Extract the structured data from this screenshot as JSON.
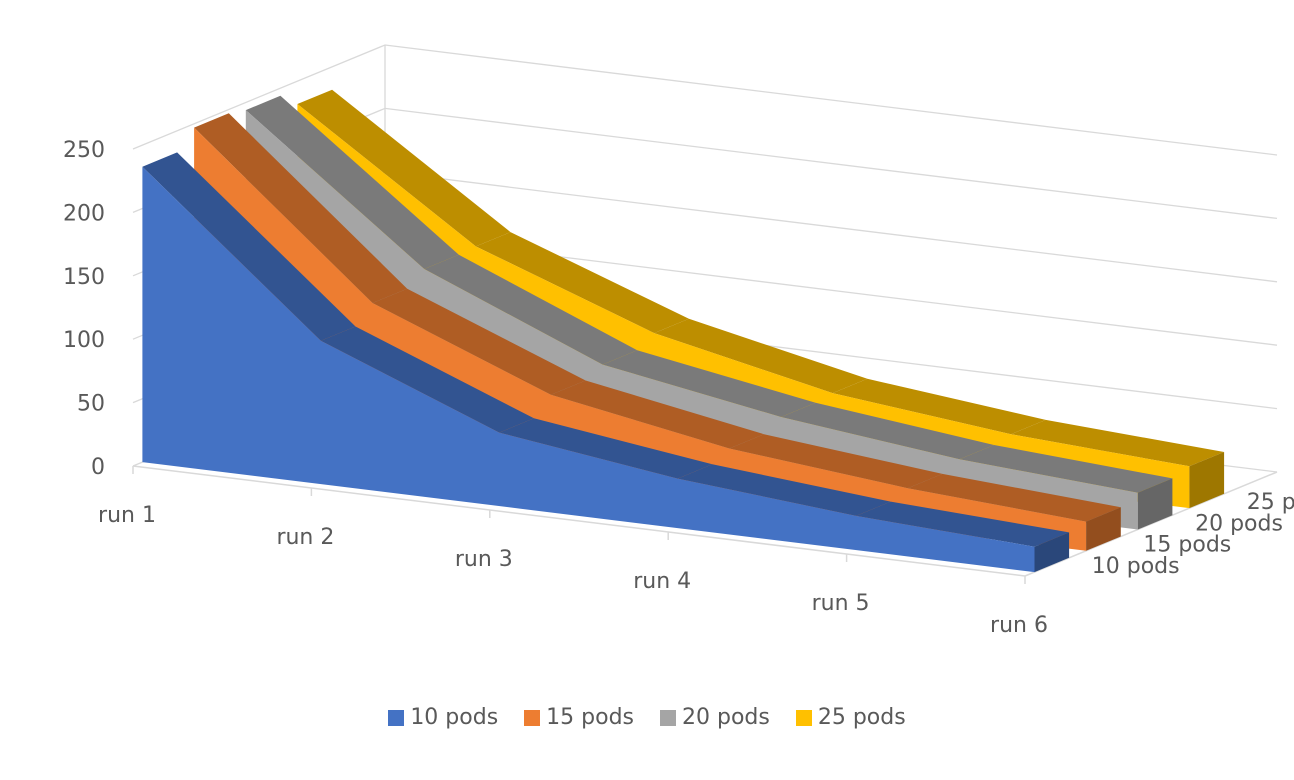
{
  "chart_data": {
    "type": "area",
    "subtype": "3d-area",
    "title": "",
    "xlabel": "",
    "ylabel": "",
    "categories": [
      "run 1",
      "run 2",
      "run 3",
      "run 4",
      "run 5",
      "run 6"
    ],
    "ylim": [
      0,
      250
    ],
    "yticks": [
      0,
      50,
      100,
      150,
      200,
      250
    ],
    "grid": true,
    "legend_position": "bottom",
    "series": [
      {
        "name": "10 pods",
        "color": "#4472C4",
        "values": [
          233,
          113,
          58,
          39,
          27,
          20
        ]
      },
      {
        "name": "15 pods",
        "color": "#ED7D31",
        "values": [
          247,
          126,
          71,
          46,
          32,
          23
        ]
      },
      {
        "name": "20 pods",
        "color": "#A5A5A5",
        "values": [
          244,
          136,
          78,
          54,
          38,
          29
        ]
      },
      {
        "name": "25 pods",
        "color": "#FFC000",
        "values": [
          232,
          137,
          86,
          56,
          41,
          33
        ]
      }
    ]
  }
}
